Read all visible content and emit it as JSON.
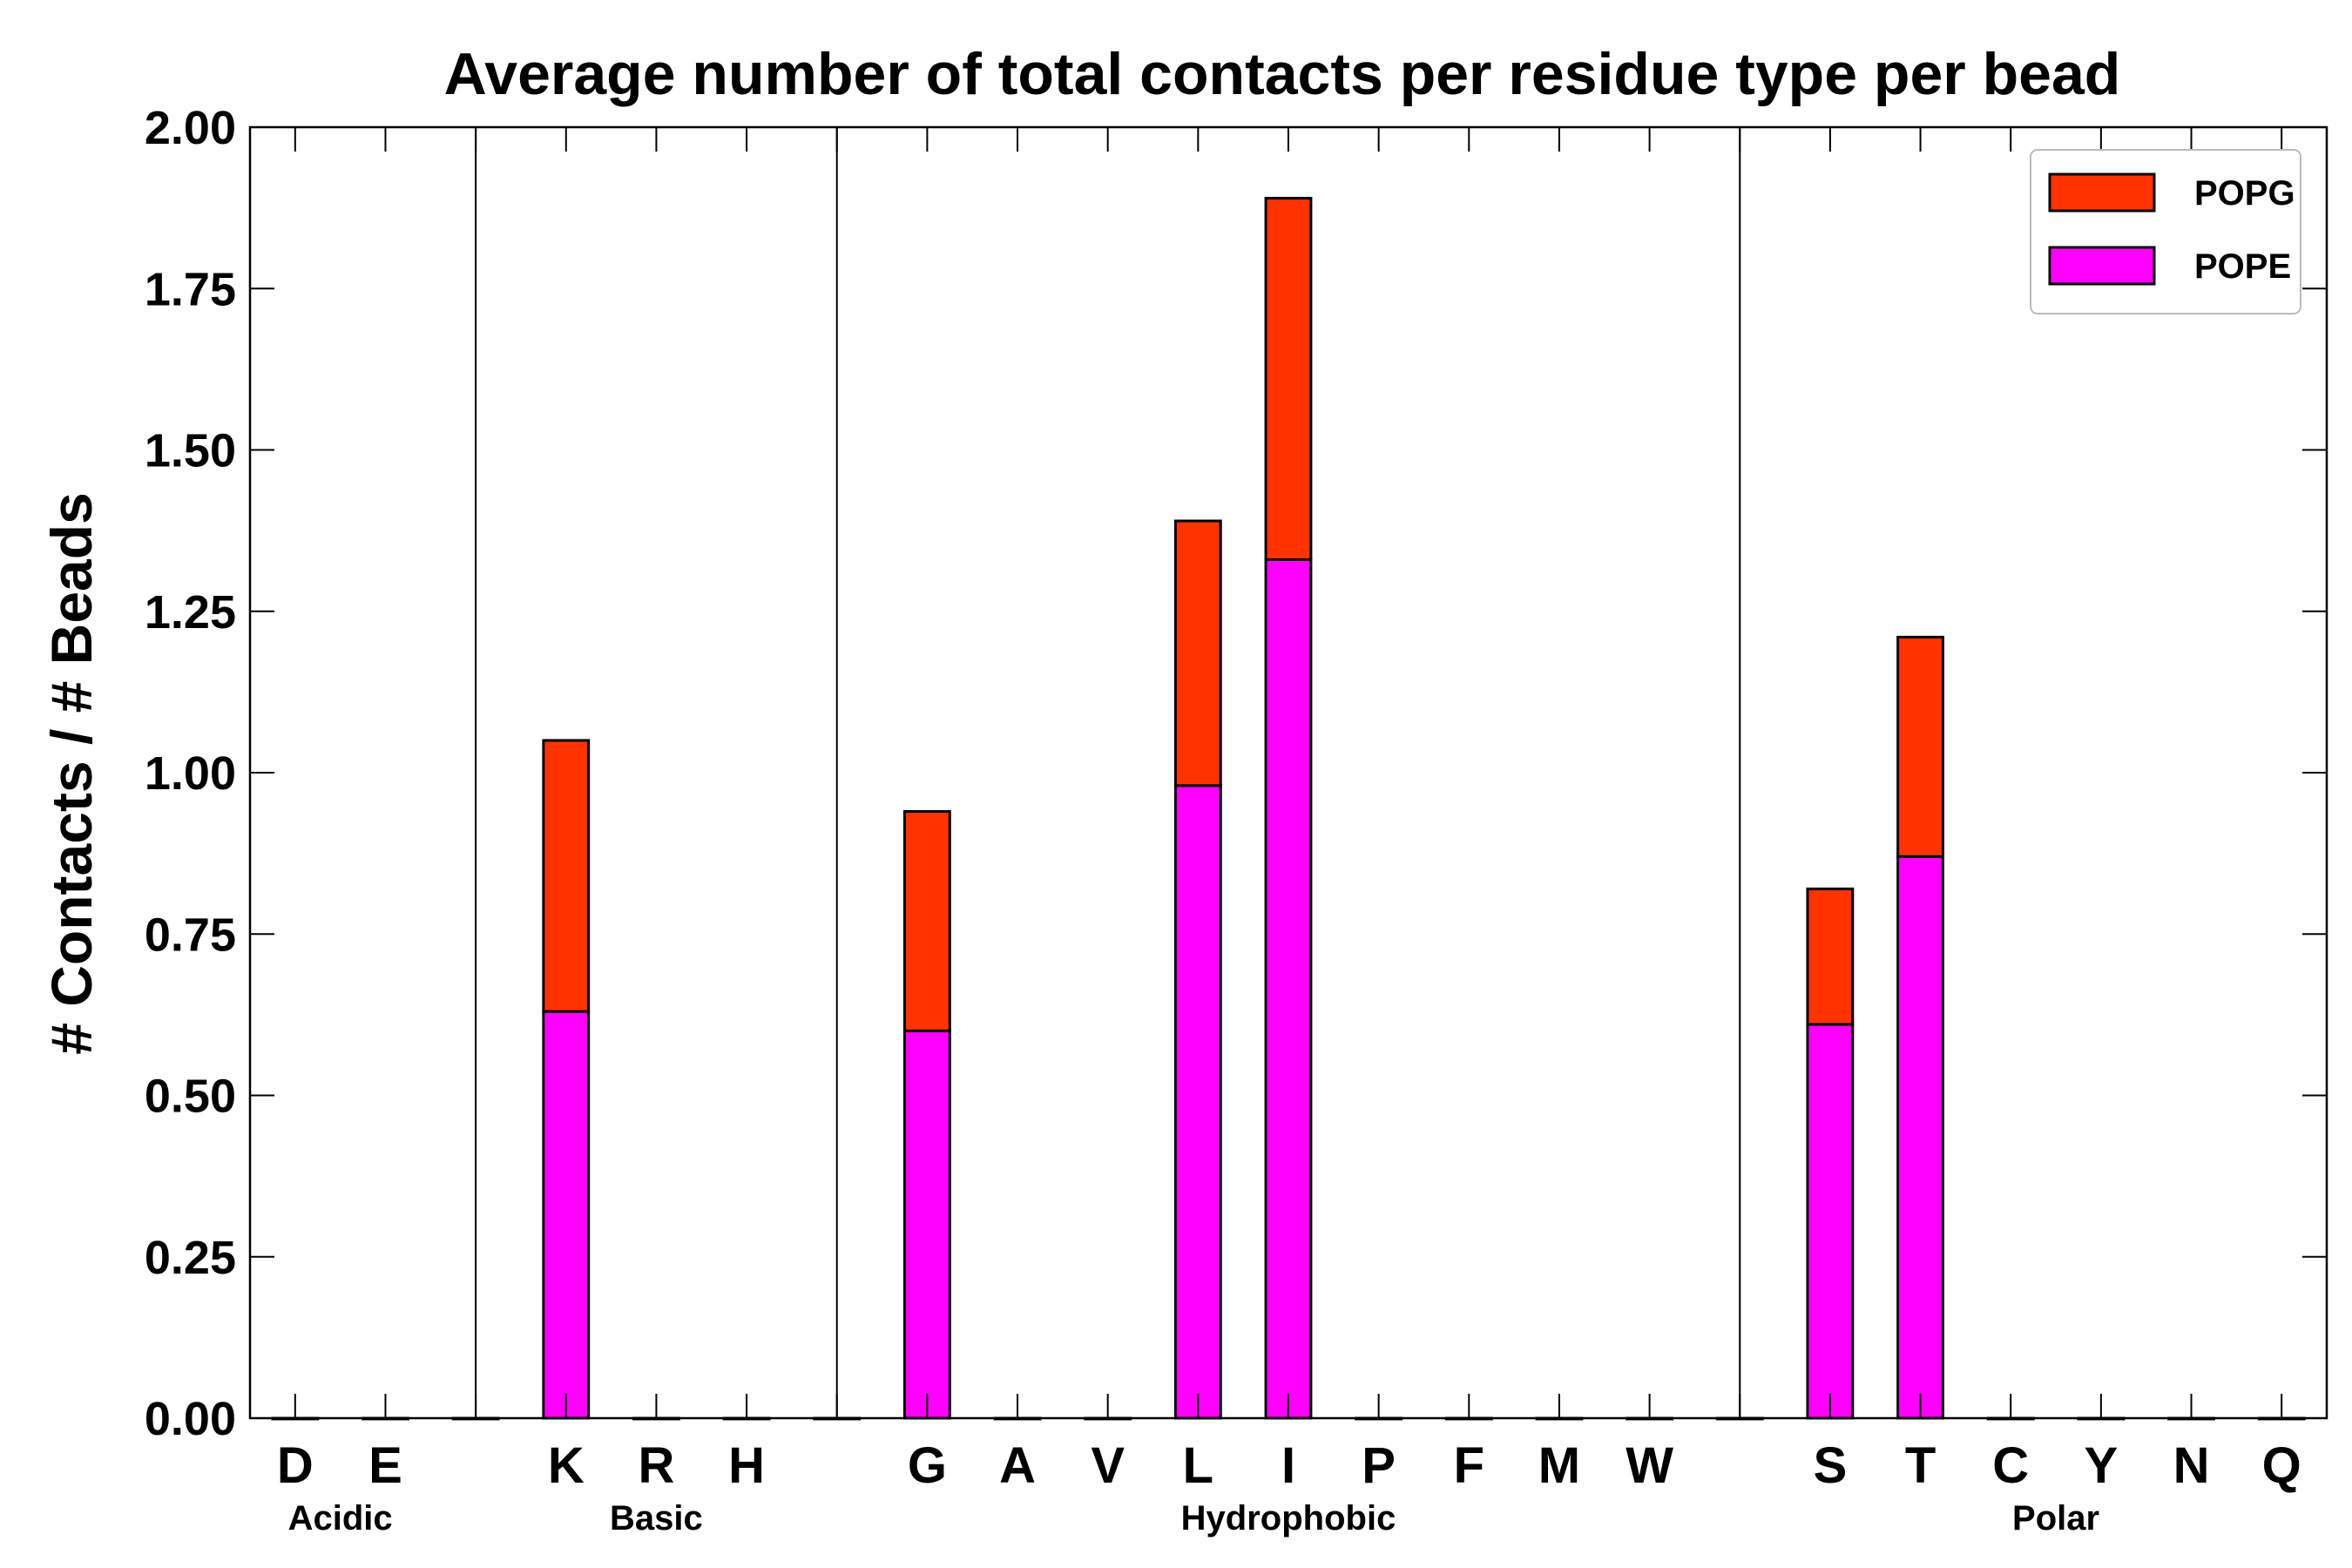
{
  "chart_data": {
    "type": "bar",
    "stacked": true,
    "title": "Average number of total contacts per residue type per bead",
    "xlabel": "",
    "ylabel": "# Contacts / # Beads",
    "ylim": [
      0,
      2.0
    ],
    "yticks": [
      "0.00",
      "0.25",
      "0.50",
      "0.75",
      "1.00",
      "1.25",
      "1.50",
      "1.75",
      "2.00"
    ],
    "slots": [
      "D",
      "E",
      "",
      "K",
      "R",
      "H",
      "",
      "G",
      "A",
      "V",
      "L",
      "I",
      "P",
      "F",
      "M",
      "W",
      "",
      "S",
      "T",
      "C",
      "Y",
      "N",
      "Q"
    ],
    "groups": [
      {
        "label": "Acidic",
        "start": 0,
        "end": 1
      },
      {
        "label": "Basic",
        "start": 3,
        "end": 5
      },
      {
        "label": "Hydrophobic",
        "start": 7,
        "end": 15
      },
      {
        "label": "Polar",
        "start": 17,
        "end": 22
      }
    ],
    "series": [
      {
        "name": "POPE",
        "color": "#ff00ff",
        "values": [
          0,
          0,
          0,
          0.63,
          0,
          0,
          0,
          0.6,
          0,
          0,
          0.98,
          1.33,
          0,
          0,
          0,
          0,
          0,
          0.61,
          0.87,
          0,
          0,
          0,
          0
        ]
      },
      {
        "name": "POPG",
        "color": "#ff3300",
        "values": [
          0,
          0,
          0,
          0.42,
          0,
          0,
          0,
          0.34,
          0,
          0,
          0.41,
          0.56,
          0,
          0,
          0,
          0,
          0,
          0.21,
          0.34,
          0,
          0,
          0,
          0
        ]
      }
    ],
    "legend": {
      "position": "top-right",
      "order": [
        "POPG",
        "POPE"
      ]
    },
    "grid": false
  }
}
